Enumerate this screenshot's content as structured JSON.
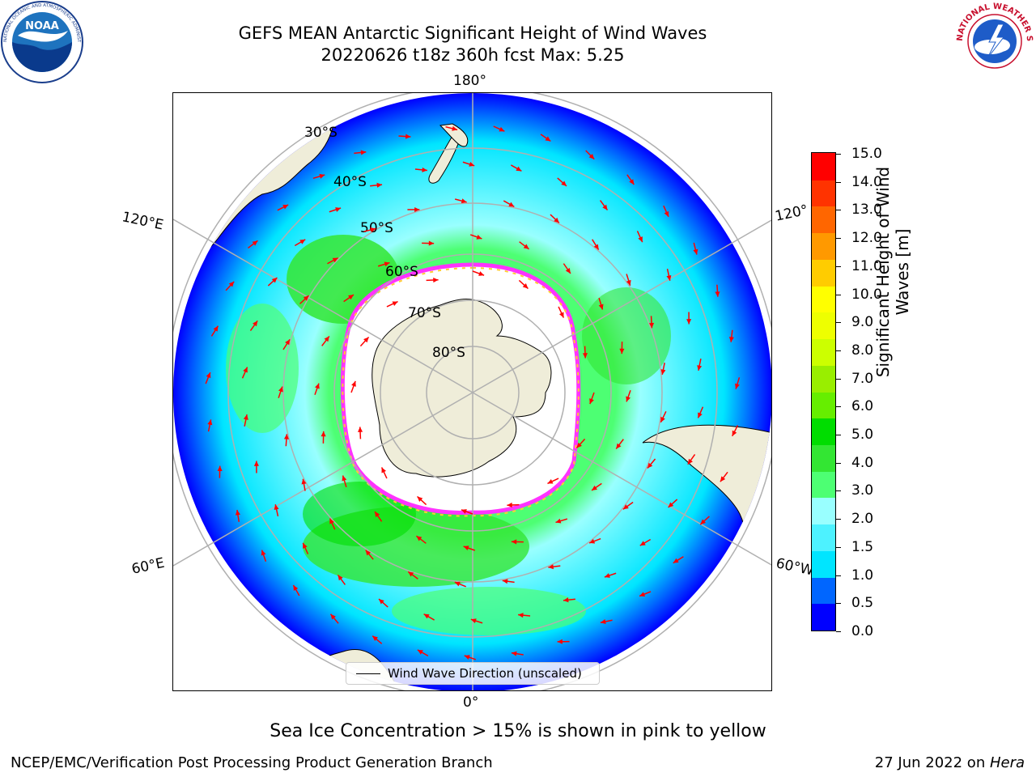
{
  "title": {
    "line1": "GEFS MEAN Antarctic Significant Height of Wind Waves",
    "line2": "20220626 t18z 360h fcst   Max: 5.25"
  },
  "map": {
    "longitude_labels": {
      "top": "180°",
      "bottom": "0°",
      "upper_left": "120°E",
      "lower_left": "60°E",
      "upper_right": "120°",
      "lower_right": "60°W"
    },
    "latitude_labels": [
      "30°S",
      "40°S",
      "50°S",
      "60°S",
      "70°S",
      "80°S"
    ],
    "legend_label": "Wind Wave Direction (unscaled)",
    "colors": {
      "land": "#efedd9",
      "sea_ice_land_mask": "#ffffff",
      "grid": "#b0b0b0",
      "arrow": "#ff0000",
      "ice_edge_pink": "#ff33ff",
      "ice_edge_yellow": "#ffcc33"
    }
  },
  "colorbar": {
    "title": "Significant Height of Wind Waves [m]",
    "ticks": [
      "15.0",
      "14.0",
      "13.0",
      "12.0",
      "11.0",
      "10.0",
      "9.0",
      "8.0",
      "7.0",
      "6.0",
      "5.0",
      "4.0",
      "3.0",
      "2.0",
      "1.5",
      "1.0",
      "0.5",
      "0.0"
    ],
    "colors": [
      "#0000ff",
      "#0066ff",
      "#00e5ff",
      "#4df2ff",
      "#99ffff",
      "#4dff73",
      "#33e633",
      "#00dd00",
      "#66ee00",
      "#99ee00",
      "#ccff00",
      "#eeff00",
      "#ffff00",
      "#ffcc00",
      "#ff9900",
      "#ff6600",
      "#ff3300",
      "#ff0000"
    ]
  },
  "note": "Sea Ice Concentration > 15% is shown in pink to yellow",
  "footer": {
    "left": "NCEP/EMC/Verification Post Processing Product Generation Branch",
    "right_prefix": "27 Jun 2022 on ",
    "right_machine": "Hera"
  },
  "logos": {
    "noaa_text": "NOAA",
    "noaa_ring": "NATIONAL OCEANIC AND ATMOSPHERIC ADMINISTRATION",
    "noaa_ring_bottom": "U.S. DEPARTMENT OF COMMERCE",
    "nws_ring": "NATIONAL WEATHER SERVICE"
  }
}
